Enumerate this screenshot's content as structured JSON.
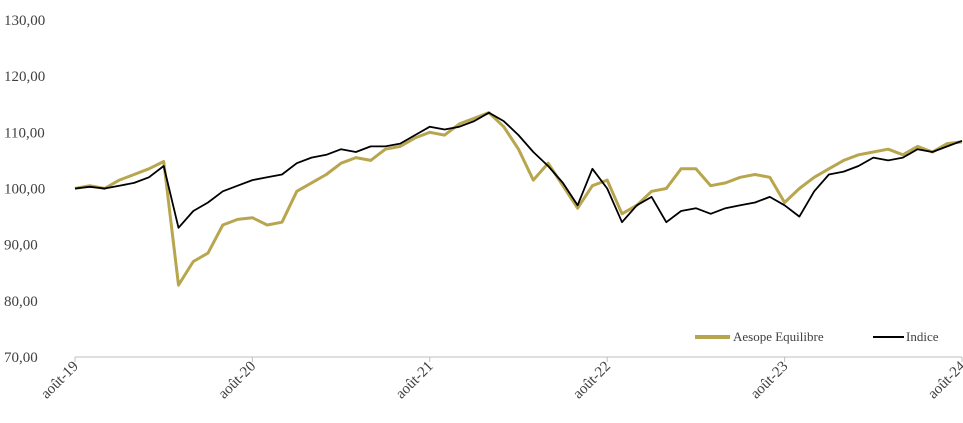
{
  "chart_data": {
    "type": "line",
    "title": "",
    "xlabel": "",
    "ylabel": "",
    "ylim": [
      70,
      130
    ],
    "y_ticks": [
      "70,00",
      "80,00",
      "90,00",
      "100,00",
      "110,00",
      "120,00",
      "130,00"
    ],
    "y_tick_values": [
      70,
      80,
      90,
      100,
      110,
      120,
      130
    ],
    "x_ticks": [
      "août-19",
      "août-20",
      "août-21",
      "août-22",
      "août-23",
      "août-24"
    ],
    "x_tick_positions": [
      "2019-08",
      "2020-08",
      "2021-08",
      "2022-08",
      "2023-08",
      "2024-08"
    ],
    "grid": false,
    "legend_position": "bottom-right",
    "series": [
      {
        "name": "Aesope Equilibre",
        "color": "#b8a64f",
        "points": [
          [
            "2019-08",
            100.0
          ],
          [
            "2019-09",
            100.5
          ],
          [
            "2019-10",
            100.0
          ],
          [
            "2019-11",
            101.5
          ],
          [
            "2019-12",
            102.5
          ],
          [
            "2020-01",
            103.5
          ],
          [
            "2020-02",
            104.8
          ],
          [
            "2020-03",
            82.8
          ],
          [
            "2020-04",
            87.0
          ],
          [
            "2020-05",
            88.5
          ],
          [
            "2020-06",
            93.5
          ],
          [
            "2020-07",
            94.5
          ],
          [
            "2020-08",
            94.8
          ],
          [
            "2020-09",
            93.5
          ],
          [
            "2020-10",
            94.0
          ],
          [
            "2020-11",
            99.5
          ],
          [
            "2020-12",
            101.0
          ],
          [
            "2021-01",
            102.5
          ],
          [
            "2021-02",
            104.5
          ],
          [
            "2021-03",
            105.5
          ],
          [
            "2021-04",
            105.0
          ],
          [
            "2021-05",
            107.0
          ],
          [
            "2021-06",
            107.5
          ],
          [
            "2021-07",
            109.0
          ],
          [
            "2021-08",
            110.0
          ],
          [
            "2021-09",
            109.5
          ],
          [
            "2021-10",
            111.5
          ],
          [
            "2021-11",
            112.5
          ],
          [
            "2021-12",
            113.5
          ],
          [
            "2022-01",
            111.0
          ],
          [
            "2022-02",
            107.0
          ],
          [
            "2022-03",
            101.5
          ],
          [
            "2022-04",
            104.5
          ],
          [
            "2022-05",
            100.5
          ],
          [
            "2022-06",
            96.5
          ],
          [
            "2022-07",
            100.5
          ],
          [
            "2022-08",
            101.5
          ],
          [
            "2022-09",
            95.5
          ],
          [
            "2022-10",
            97.0
          ],
          [
            "2022-11",
            99.5
          ],
          [
            "2022-12",
            100.0
          ],
          [
            "2023-01",
            103.5
          ],
          [
            "2023-02",
            103.5
          ],
          [
            "2023-03",
            100.5
          ],
          [
            "2023-04",
            101.0
          ],
          [
            "2023-05",
            102.0
          ],
          [
            "2023-06",
            102.5
          ],
          [
            "2023-07",
            102.0
          ],
          [
            "2023-08",
            97.5
          ],
          [
            "2023-09",
            100.0
          ],
          [
            "2023-10",
            102.0
          ],
          [
            "2023-11",
            103.5
          ],
          [
            "2023-12",
            105.0
          ],
          [
            "2024-01",
            106.0
          ],
          [
            "2024-02",
            106.5
          ],
          [
            "2024-03",
            107.0
          ],
          [
            "2024-04",
            106.0
          ],
          [
            "2024-05",
            107.5
          ],
          [
            "2024-06",
            106.5
          ],
          [
            "2024-07",
            108.0
          ],
          [
            "2024-08",
            108.3
          ]
        ]
      },
      {
        "name": "Indice",
        "color": "#000000",
        "points": [
          [
            "2019-08",
            100.0
          ],
          [
            "2019-09",
            100.3
          ],
          [
            "2019-10",
            100.0
          ],
          [
            "2019-11",
            100.5
          ],
          [
            "2019-12",
            101.0
          ],
          [
            "2020-01",
            102.0
          ],
          [
            "2020-02",
            104.0
          ],
          [
            "2020-03",
            93.0
          ],
          [
            "2020-04",
            96.0
          ],
          [
            "2020-05",
            97.5
          ],
          [
            "2020-06",
            99.5
          ],
          [
            "2020-07",
            100.5
          ],
          [
            "2020-08",
            101.5
          ],
          [
            "2020-09",
            102.0
          ],
          [
            "2020-10",
            102.5
          ],
          [
            "2020-11",
            104.5
          ],
          [
            "2020-12",
            105.5
          ],
          [
            "2021-01",
            106.0
          ],
          [
            "2021-02",
            107.0
          ],
          [
            "2021-03",
            106.5
          ],
          [
            "2021-04",
            107.5
          ],
          [
            "2021-05",
            107.5
          ],
          [
            "2021-06",
            108.0
          ],
          [
            "2021-07",
            109.5
          ],
          [
            "2021-08",
            111.0
          ],
          [
            "2021-09",
            110.5
          ],
          [
            "2021-10",
            111.0
          ],
          [
            "2021-11",
            112.0
          ],
          [
            "2021-12",
            113.5
          ],
          [
            "2022-01",
            112.0
          ],
          [
            "2022-02",
            109.5
          ],
          [
            "2022-03",
            106.5
          ],
          [
            "2022-04",
            104.0
          ],
          [
            "2022-05",
            101.0
          ],
          [
            "2022-06",
            97.0
          ],
          [
            "2022-07",
            103.5
          ],
          [
            "2022-08",
            100.0
          ],
          [
            "2022-09",
            94.0
          ],
          [
            "2022-10",
            97.0
          ],
          [
            "2022-11",
            98.5
          ],
          [
            "2022-12",
            94.0
          ],
          [
            "2023-01",
            96.0
          ],
          [
            "2023-02",
            96.5
          ],
          [
            "2023-03",
            95.5
          ],
          [
            "2023-04",
            96.5
          ],
          [
            "2023-05",
            97.0
          ],
          [
            "2023-06",
            97.5
          ],
          [
            "2023-07",
            98.5
          ],
          [
            "2023-08",
            97.0
          ],
          [
            "2023-09",
            95.0
          ],
          [
            "2023-10",
            99.5
          ],
          [
            "2023-11",
            102.5
          ],
          [
            "2023-12",
            103.0
          ],
          [
            "2024-01",
            104.0
          ],
          [
            "2024-02",
            105.5
          ],
          [
            "2024-03",
            105.0
          ],
          [
            "2024-04",
            105.5
          ],
          [
            "2024-05",
            107.0
          ],
          [
            "2024-06",
            106.5
          ],
          [
            "2024-07",
            107.5
          ],
          [
            "2024-08",
            108.5
          ]
        ]
      }
    ]
  }
}
